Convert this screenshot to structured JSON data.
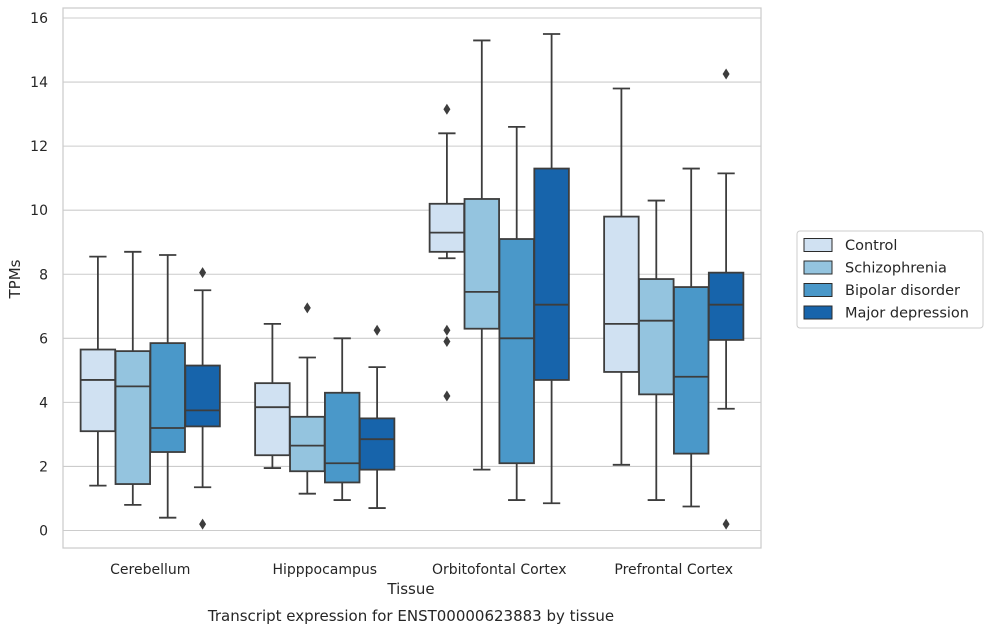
{
  "chart_data": {
    "type": "box",
    "title": "",
    "caption": "Transcript expression for ENST00000623883 by tissue",
    "xlabel": "Tissue",
    "ylabel": "TPMs",
    "ylim": [
      -0.5,
      16.2
    ],
    "yticks": [
      0,
      2,
      4,
      6,
      8,
      10,
      12,
      14,
      16
    ],
    "grid": "horizontal",
    "legend_position": "right",
    "categories": [
      "Cerebellum",
      "Hipppocampus",
      "Orbitofontal Cortex",
      "Prefrontal Cortex"
    ],
    "series": [
      {
        "name": "Control",
        "color": "#d0e1f2",
        "boxes": [
          {
            "whislo": 1.4,
            "q1": 3.1,
            "med": 4.7,
            "q3": 5.65,
            "whishi": 8.55,
            "fliers": []
          },
          {
            "whislo": 1.95,
            "q1": 2.35,
            "med": 3.85,
            "q3": 4.6,
            "whishi": 6.45,
            "fliers": []
          },
          {
            "whislo": 8.5,
            "q1": 8.7,
            "med": 9.3,
            "q3": 10.2,
            "whishi": 12.4,
            "fliers": [
              13.15,
              6.25,
              5.9,
              4.2
            ]
          },
          {
            "whislo": 2.05,
            "q1": 4.95,
            "med": 6.45,
            "q3": 9.8,
            "whishi": 13.8,
            "fliers": []
          }
        ]
      },
      {
        "name": "Schizophrenia",
        "color": "#94c4df",
        "boxes": [
          {
            "whislo": 0.8,
            "q1": 1.45,
            "med": 4.5,
            "q3": 5.6,
            "whishi": 8.7,
            "fliers": []
          },
          {
            "whislo": 1.15,
            "q1": 1.85,
            "med": 2.65,
            "q3": 3.55,
            "whishi": 5.4,
            "fliers": [
              6.95
            ]
          },
          {
            "whislo": 1.9,
            "q1": 6.3,
            "med": 7.45,
            "q3": 10.35,
            "whishi": 15.3,
            "fliers": []
          },
          {
            "whislo": 0.95,
            "q1": 4.25,
            "med": 6.55,
            "q3": 7.85,
            "whishi": 10.3,
            "fliers": []
          }
        ]
      },
      {
        "name": "Bipolar disorder",
        "color": "#4a98c9",
        "boxes": [
          {
            "whislo": 0.4,
            "q1": 2.45,
            "med": 3.2,
            "q3": 5.85,
            "whishi": 8.6,
            "fliers": []
          },
          {
            "whislo": 0.95,
            "q1": 1.5,
            "med": 2.1,
            "q3": 4.3,
            "whishi": 6.0,
            "fliers": []
          },
          {
            "whislo": 0.95,
            "q1": 2.1,
            "med": 6.0,
            "q3": 9.1,
            "whishi": 12.6,
            "fliers": []
          },
          {
            "whislo": 0.75,
            "q1": 2.4,
            "med": 4.8,
            "q3": 7.6,
            "whishi": 11.3,
            "fliers": []
          }
        ]
      },
      {
        "name": "Major depression",
        "color": "#1764ab",
        "boxes": [
          {
            "whislo": 1.35,
            "q1": 3.25,
            "med": 3.75,
            "q3": 5.15,
            "whishi": 7.5,
            "fliers": [
              8.05,
              0.2
            ]
          },
          {
            "whislo": 0.7,
            "q1": 1.9,
            "med": 2.85,
            "q3": 3.5,
            "whishi": 5.1,
            "fliers": [
              6.25
            ]
          },
          {
            "whislo": 0.85,
            "q1": 4.7,
            "med": 7.05,
            "q3": 11.3,
            "whishi": 15.5,
            "fliers": []
          },
          {
            "whislo": 3.8,
            "q1": 5.95,
            "med": 7.05,
            "q3": 8.05,
            "whishi": 11.15,
            "fliers": [
              14.25,
              0.2
            ]
          }
        ]
      }
    ]
  }
}
